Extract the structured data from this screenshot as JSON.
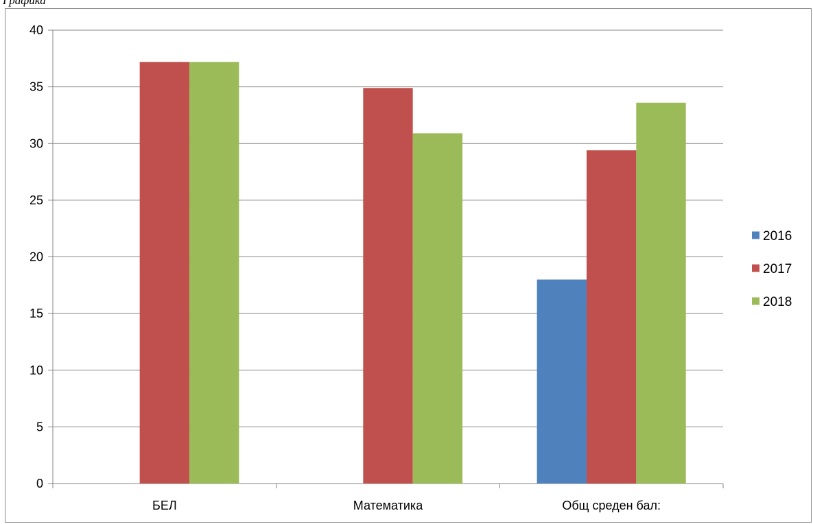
{
  "heading": "Графика",
  "chart_data": {
    "type": "bar",
    "title": "",
    "xlabel": "",
    "ylabel": "",
    "categories": [
      "БЕЛ",
      "Математика",
      "Общ среден бал:"
    ],
    "series": [
      {
        "name": "2016",
        "color": "#4f81bd",
        "values": [
          null,
          null,
          18
        ]
      },
      {
        "name": "2017",
        "color": "#c0504d",
        "values": [
          37.2,
          34.9,
          29.4
        ]
      },
      {
        "name": "2018",
        "color": "#9bbb59",
        "values": [
          37.2,
          30.9,
          33.6
        ]
      }
    ],
    "ylim": [
      0,
      40
    ],
    "yticks": [
      0,
      5,
      10,
      15,
      20,
      25,
      30,
      35,
      40
    ],
    "grid": true,
    "legend": "right",
    "gridline_color": "#868686"
  }
}
